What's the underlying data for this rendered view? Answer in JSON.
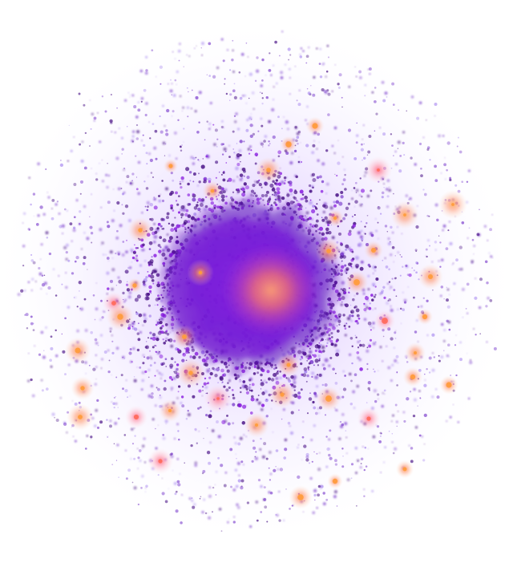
{
  "palette": {
    "background": "#ffffff",
    "halo_inner": "#c9a8ff",
    "halo_outer": "#efe6ff",
    "core_deep": "#5a0fc8",
    "core_mid": "#8a1fe0",
    "core_hot": "#ff8a5a",
    "particle_dark": "#4b1488",
    "particle_mid": "#7a3ccc",
    "particle_light": "#a98af0",
    "clump_hot": "#ff9a3a",
    "clump_warm": "#ff6a5a",
    "clump_glow": "#ffc8a0"
  },
  "particles": {
    "count": 2600,
    "seed": 1729
  },
  "clumps": {
    "count": 40
  }
}
